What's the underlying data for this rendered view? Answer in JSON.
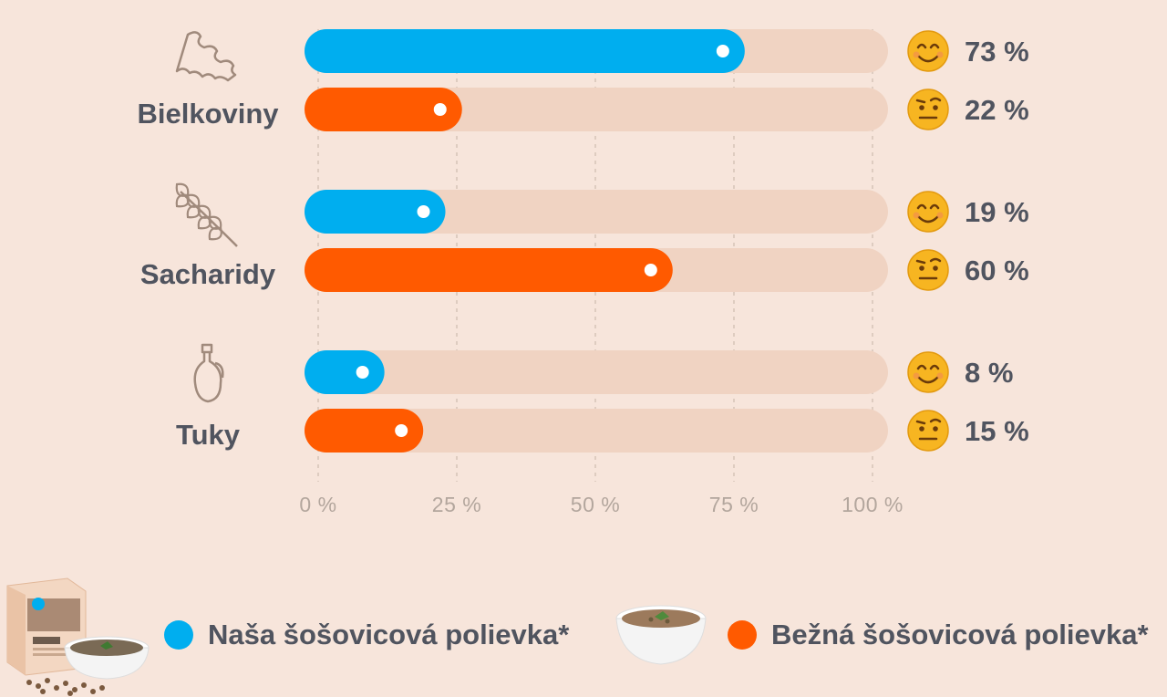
{
  "chart_data": {
    "type": "bar",
    "orientation": "horizontal",
    "categories": [
      "Bielkoviny",
      "Sacharidy",
      "Tuky"
    ],
    "category_icons": [
      "pasta-icon",
      "wheat-icon",
      "oil-bottle-icon"
    ],
    "xlim": [
      0,
      100
    ],
    "x_ticks": [
      "0 %",
      "25 %",
      "50 %",
      "75 %",
      "100 %"
    ],
    "grid": true,
    "legend_position": "bottom",
    "series": [
      {
        "name": "Naša šošovicová polievka*",
        "color": "#00aeef",
        "values": [
          73,
          19,
          8
        ],
        "labels": [
          "73 %",
          "19 %",
          "8 %"
        ],
        "emoji": "smiling-face-icon"
      },
      {
        "name": "Bežná šošovicová polievka*",
        "color": "#ff5a00",
        "values": [
          22,
          60,
          15
        ],
        "labels": [
          "22 %",
          "60 %",
          "15 %"
        ],
        "emoji": "raised-eyebrow-face-icon"
      }
    ]
  },
  "colors": {
    "background": "#f7e5db",
    "track": "#f0d3c2",
    "grid": "#d6c4b8",
    "text": "#50545f",
    "tick_text": "#b3a69d",
    "icon": "#a08a7c"
  },
  "legend": {
    "item1_label": "Naša šošovicová polievka*",
    "item2_label": "Bežná šošovicová polievka*"
  }
}
